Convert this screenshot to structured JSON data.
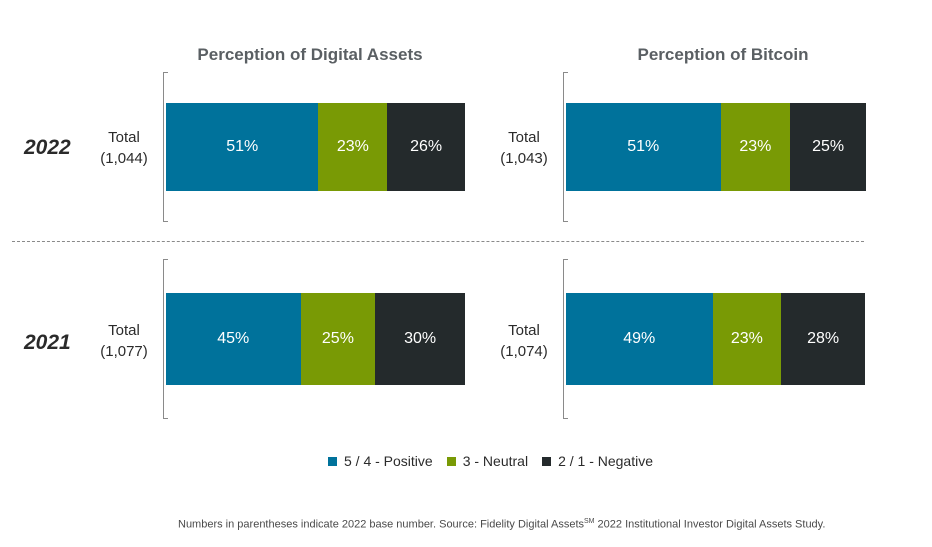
{
  "chart_data": {
    "type": "bar",
    "orientation": "horizontal-stacked-100",
    "panels": [
      {
        "title": "Perception of Digital Assets",
        "rows": [
          {
            "year": "2022",
            "label": "Total",
            "base": "(1,044)",
            "values": [
              51,
              23,
              26
            ],
            "labels": [
              "51%",
              "23%",
              "26%"
            ]
          },
          {
            "year": "2021",
            "label": "Total",
            "base": "(1,077)",
            "values": [
              45,
              25,
              30
            ],
            "labels": [
              "45%",
              "25%",
              "30%"
            ]
          }
        ]
      },
      {
        "title": "Perception of Bitcoin",
        "rows": [
          {
            "year": "2022",
            "label": "Total",
            "base": "(1,043)",
            "values": [
              51,
              23,
              25
            ],
            "labels": [
              "51%",
              "23%",
              "25%"
            ]
          },
          {
            "year": "2021",
            "label": "Total",
            "base": "(1,074)",
            "values": [
              49,
              23,
              28
            ],
            "labels": [
              "49%",
              "23%",
              "28%"
            ]
          }
        ]
      }
    ],
    "series": [
      {
        "name": "5 / 4 - Positive",
        "color": "#00729b"
      },
      {
        "name": "3 - Neutral",
        "color": "#799a05"
      },
      {
        "name": "2 / 1 - Negative",
        "color": "#242a2c"
      }
    ],
    "legend_position": "bottom"
  },
  "footnote": {
    "text_before": "Numbers in parentheses indicate 2022 base number. Source: Fidelity Digital Assets",
    "sup": "SM",
    "text_after": " 2022 Institutional Investor Digital Assets Study."
  }
}
